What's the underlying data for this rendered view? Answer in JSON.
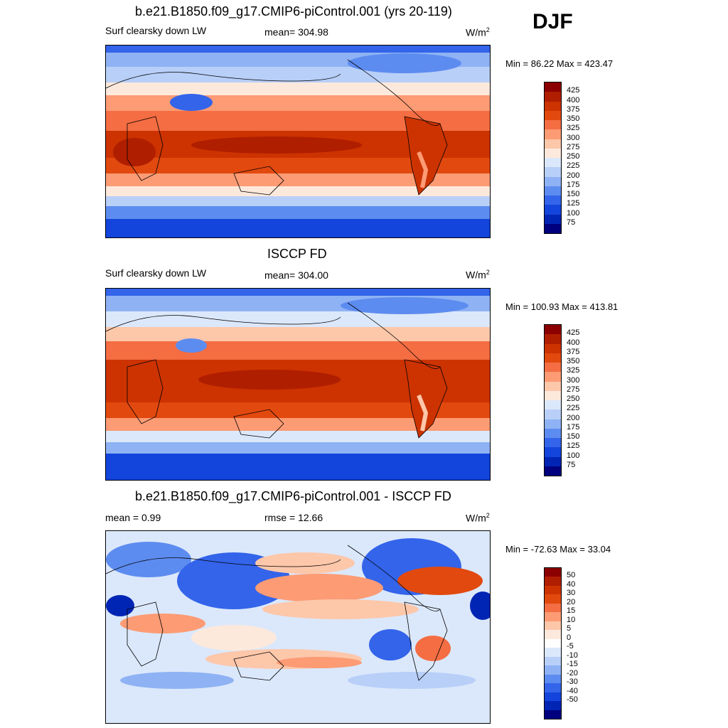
{
  "season": "DJF",
  "panels": [
    {
      "title": "b.e21.B1850.f09_g17.CMIP6-piControl.001 (yrs 20-119)",
      "left": "Surf clearsky down LW",
      "center": "mean= 304.98",
      "units": "W/m",
      "units_sup": "2",
      "minmax": "Min =  86.22 Max = 423.47",
      "colors": [
        "#8b0000",
        "#b01e00",
        "#cc3300",
        "#e2490f",
        "#f46d43",
        "#fc9b74",
        "#fdc7aa",
        "#fde9dc",
        "#dbe8fb",
        "#b8cff8",
        "#8eb2f4",
        "#5d8cf0",
        "#3364ea",
        "#1344db",
        "#0025b4",
        "#00007f"
      ],
      "labels": [
        "425",
        "400",
        "375",
        "350",
        "325",
        "300",
        "275",
        "250",
        "225",
        "200",
        "175",
        "150",
        "125",
        "100",
        "75"
      ]
    },
    {
      "title": "ISCCP FD",
      "left": "Surf clearsky down LW",
      "center": "mean= 304.00",
      "units": "W/m",
      "units_sup": "2",
      "minmax": "Min = 100.93 Max = 413.81",
      "colors": [
        "#8b0000",
        "#b01e00",
        "#cc3300",
        "#e2490f",
        "#f46d43",
        "#fc9b74",
        "#fdc7aa",
        "#fde9dc",
        "#dbe8fb",
        "#b8cff8",
        "#8eb2f4",
        "#5d8cf0",
        "#3364ea",
        "#1344db",
        "#0025b4",
        "#00007f"
      ],
      "labels": [
        "425",
        "400",
        "375",
        "350",
        "325",
        "300",
        "275",
        "250",
        "225",
        "200",
        "175",
        "150",
        "125",
        "100",
        "75"
      ]
    },
    {
      "title": "b.e21.B1850.f09_g17.CMIP6-piControl.001 - ISCCP FD",
      "left": "mean =   0.99",
      "center": "rmse =  12.66",
      "units": "W/m",
      "units_sup": "2",
      "minmax": "Min = -72.63 Max =  33.04",
      "colors": [
        "#8b0000",
        "#b01e00",
        "#cc3300",
        "#e2490f",
        "#f46d43",
        "#fc9b74",
        "#fdc7aa",
        "#fde9dc",
        "#ffffff",
        "#dbe8fb",
        "#b8cff8",
        "#8eb2f4",
        "#5d8cf0",
        "#3364ea",
        "#1344db",
        "#0025b4",
        "#00007f"
      ],
      "labels": [
        "50",
        "40",
        "30",
        "20",
        "15",
        "10",
        "5",
        "0",
        "-5",
        "-10",
        "-15",
        "-20",
        "-30",
        "-40",
        "-50"
      ]
    }
  ]
}
